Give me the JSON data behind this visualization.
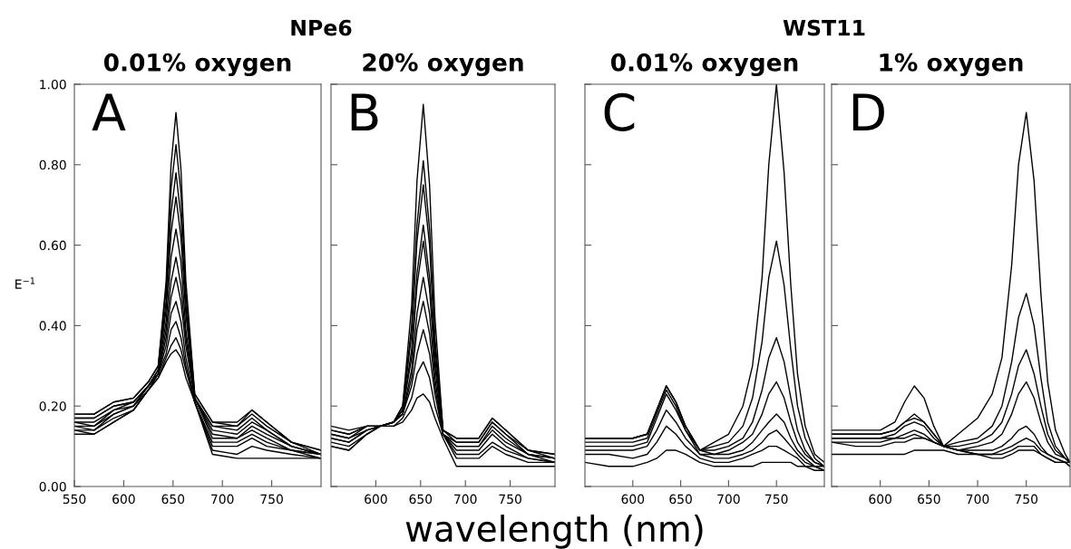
{
  "chart_data": [
    {
      "type": "line",
      "title": "NPe6",
      "subtitle": "0.01% oxygen",
      "ylabel": "E$^{−1}$",
      "annotations": [
        "A"
      ],
      "xlim": [
        550,
        800
      ],
      "ylim": [
        0,
        1
      ],
      "xticks": [
        550,
        600,
        650,
        700,
        750
      ],
      "yticks": [
        {
          "value": 0,
          "label": "0.00"
        },
        {
          "value": 0.2,
          "label": "0.20"
        },
        {
          "value": 0.4,
          "label": "0.40"
        },
        {
          "value": 0.6,
          "label": "0.60"
        },
        {
          "value": 0.8,
          "label": "0.80"
        },
        {
          "value": 1,
          "label": "1.00"
        }
      ],
      "grid": false,
      "x": [
        550,
        570,
        590,
        610,
        625,
        635,
        643,
        648,
        653,
        658,
        663,
        672,
        690,
        715,
        730,
        745,
        770,
        800
      ],
      "series": [
        {
          "color": "#000000",
          "values": [
            0.18,
            0.18,
            0.21,
            0.22,
            0.26,
            0.3,
            0.51,
            0.8,
            0.93,
            0.79,
            0.51,
            0.23,
            0.16,
            0.16,
            0.19,
            0.16,
            0.11,
            0.09
          ]
        },
        {
          "color": "#000000",
          "values": [
            0.18,
            0.18,
            0.21,
            0.22,
            0.26,
            0.3,
            0.49,
            0.74,
            0.85,
            0.73,
            0.48,
            0.23,
            0.16,
            0.15,
            0.19,
            0.16,
            0.11,
            0.09
          ]
        },
        {
          "color": "#000000",
          "values": [
            0.17,
            0.17,
            0.2,
            0.21,
            0.25,
            0.29,
            0.46,
            0.68,
            0.78,
            0.67,
            0.45,
            0.22,
            0.15,
            0.15,
            0.18,
            0.15,
            0.11,
            0.08
          ]
        },
        {
          "color": "#000000",
          "values": [
            0.17,
            0.17,
            0.2,
            0.21,
            0.25,
            0.29,
            0.44,
            0.63,
            0.72,
            0.62,
            0.43,
            0.22,
            0.15,
            0.14,
            0.17,
            0.14,
            0.1,
            0.08
          ]
        },
        {
          "color": "#000000",
          "values": [
            0.16,
            0.16,
            0.19,
            0.21,
            0.25,
            0.29,
            0.41,
            0.57,
            0.64,
            0.56,
            0.39,
            0.22,
            0.14,
            0.13,
            0.16,
            0.14,
            0.1,
            0.08
          ]
        },
        {
          "color": "#000000",
          "values": [
            0.16,
            0.15,
            0.19,
            0.2,
            0.25,
            0.28,
            0.39,
            0.51,
            0.57,
            0.5,
            0.37,
            0.22,
            0.13,
            0.12,
            0.15,
            0.13,
            0.1,
            0.08
          ]
        },
        {
          "color": "#000000",
          "values": [
            0.15,
            0.15,
            0.18,
            0.2,
            0.25,
            0.28,
            0.37,
            0.47,
            0.52,
            0.46,
            0.35,
            0.22,
            0.12,
            0.12,
            0.14,
            0.12,
            0.09,
            0.08
          ]
        },
        {
          "color": "#000000",
          "values": [
            0.15,
            0.14,
            0.18,
            0.2,
            0.24,
            0.28,
            0.35,
            0.43,
            0.46,
            0.41,
            0.32,
            0.21,
            0.11,
            0.11,
            0.13,
            0.11,
            0.09,
            0.08
          ]
        },
        {
          "color": "#000000",
          "values": [
            0.14,
            0.14,
            0.17,
            0.19,
            0.24,
            0.28,
            0.33,
            0.39,
            0.41,
            0.37,
            0.3,
            0.21,
            0.1,
            0.1,
            0.12,
            0.1,
            0.09,
            0.07
          ]
        },
        {
          "color": "#000000",
          "values": [
            0.14,
            0.13,
            0.16,
            0.19,
            0.24,
            0.27,
            0.32,
            0.35,
            0.37,
            0.34,
            0.29,
            0.21,
            0.09,
            0.08,
            0.1,
            0.09,
            0.08,
            0.07
          ]
        },
        {
          "color": "#000000",
          "values": [
            0.13,
            0.13,
            0.16,
            0.19,
            0.24,
            0.27,
            0.31,
            0.33,
            0.34,
            0.32,
            0.27,
            0.21,
            0.08,
            0.07,
            0.07,
            0.07,
            0.07,
            0.07
          ]
        }
      ]
    },
    {
      "type": "line",
      "subtitle": "20% oxygen",
      "xlabel": "wavelength (nm)",
      "annotations": [
        "B"
      ],
      "xlim": [
        550,
        800
      ],
      "ylim": [
        0,
        1
      ],
      "xticks": [
        600,
        650,
        700,
        750
      ],
      "yticks": [
        0,
        0.2,
        0.4,
        0.6,
        0.8,
        1
      ],
      "tick_labels": "x",
      "grid": false,
      "x": [
        550,
        570,
        590,
        605,
        620,
        630,
        640,
        646,
        653,
        660,
        666,
        675,
        690,
        715,
        730,
        745,
        770,
        800
      ],
      "series": [
        {
          "color": "#000000",
          "values": [
            0.15,
            0.14,
            0.15,
            0.15,
            0.16,
            0.2,
            0.45,
            0.76,
            0.95,
            0.75,
            0.42,
            0.14,
            0.12,
            0.12,
            0.17,
            0.14,
            0.09,
            0.08
          ]
        },
        {
          "color": "#000000",
          "values": [
            0.14,
            0.13,
            0.15,
            0.15,
            0.16,
            0.2,
            0.4,
            0.65,
            0.81,
            0.64,
            0.37,
            0.14,
            0.12,
            0.12,
            0.17,
            0.14,
            0.09,
            0.08
          ]
        },
        {
          "color": "#000000",
          "values": [
            0.14,
            0.13,
            0.15,
            0.15,
            0.16,
            0.19,
            0.38,
            0.61,
            0.75,
            0.6,
            0.35,
            0.14,
            0.11,
            0.11,
            0.16,
            0.13,
            0.09,
            0.07
          ]
        },
        {
          "color": "#000000",
          "values": [
            0.13,
            0.12,
            0.15,
            0.15,
            0.16,
            0.19,
            0.34,
            0.53,
            0.65,
            0.52,
            0.32,
            0.13,
            0.11,
            0.11,
            0.16,
            0.13,
            0.08,
            0.07
          ]
        },
        {
          "color": "#000000",
          "values": [
            0.13,
            0.12,
            0.14,
            0.15,
            0.16,
            0.19,
            0.32,
            0.5,
            0.61,
            0.49,
            0.3,
            0.13,
            0.1,
            0.1,
            0.15,
            0.12,
            0.08,
            0.07
          ]
        },
        {
          "color": "#000000",
          "values": [
            0.12,
            0.11,
            0.14,
            0.15,
            0.16,
            0.18,
            0.29,
            0.43,
            0.52,
            0.43,
            0.27,
            0.13,
            0.1,
            0.1,
            0.14,
            0.11,
            0.08,
            0.06
          ]
        },
        {
          "color": "#000000",
          "values": [
            0.12,
            0.11,
            0.14,
            0.15,
            0.16,
            0.18,
            0.27,
            0.39,
            0.46,
            0.38,
            0.25,
            0.13,
            0.09,
            0.09,
            0.13,
            0.1,
            0.07,
            0.06
          ]
        },
        {
          "color": "#000000",
          "values": [
            0.11,
            0.1,
            0.13,
            0.15,
            0.16,
            0.18,
            0.25,
            0.33,
            0.39,
            0.33,
            0.23,
            0.13,
            0.08,
            0.08,
            0.11,
            0.09,
            0.07,
            0.06
          ]
        },
        {
          "color": "#000000",
          "values": [
            0.1,
            0.09,
            0.13,
            0.15,
            0.15,
            0.17,
            0.22,
            0.28,
            0.31,
            0.27,
            0.2,
            0.13,
            0.07,
            0.07,
            0.1,
            0.08,
            0.06,
            0.06
          ]
        },
        {
          "color": "#000000",
          "values": [
            0.1,
            0.09,
            0.13,
            0.15,
            0.15,
            0.16,
            0.19,
            0.22,
            0.23,
            0.21,
            0.17,
            0.12,
            0.05,
            0.05,
            0.05,
            0.05,
            0.05,
            0.05
          ]
        }
      ]
    },
    {
      "type": "line",
      "title": "WST11",
      "subtitle": "0.01% oxygen",
      "annotations": [
        "C"
      ],
      "xlim": [
        550,
        800
      ],
      "ylim": [
        0,
        1
      ],
      "xticks": [
        600,
        650,
        700,
        750
      ],
      "yticks": [
        0,
        0.2,
        0.4,
        0.6,
        0.8,
        1
      ],
      "tick_labels": "x",
      "grid": false,
      "x": [
        550,
        575,
        600,
        615,
        625,
        635,
        645,
        655,
        670,
        685,
        700,
        715,
        725,
        735,
        742,
        750,
        758,
        765,
        772,
        780,
        790,
        800
      ],
      "series": [
        {
          "color": "#000000",
          "values": [
            0.12,
            0.12,
            0.12,
            0.13,
            0.19,
            0.25,
            0.21,
            0.15,
            0.09,
            0.11,
            0.13,
            0.2,
            0.3,
            0.52,
            0.8,
            1.0,
            0.78,
            0.5,
            0.28,
            0.15,
            0.08,
            0.06
          ]
        },
        {
          "color": "#000000",
          "values": [
            0.12,
            0.12,
            0.12,
            0.13,
            0.19,
            0.25,
            0.21,
            0.15,
            0.09,
            0.1,
            0.11,
            0.15,
            0.22,
            0.36,
            0.52,
            0.61,
            0.5,
            0.34,
            0.2,
            0.12,
            0.07,
            0.05
          ]
        },
        {
          "color": "#000000",
          "values": [
            0.12,
            0.12,
            0.12,
            0.13,
            0.19,
            0.25,
            0.21,
            0.15,
            0.09,
            0.09,
            0.1,
            0.12,
            0.16,
            0.24,
            0.32,
            0.37,
            0.31,
            0.22,
            0.14,
            0.09,
            0.06,
            0.05
          ]
        },
        {
          "color": "#000000",
          "values": [
            0.11,
            0.11,
            0.11,
            0.12,
            0.18,
            0.24,
            0.2,
            0.14,
            0.09,
            0.08,
            0.09,
            0.11,
            0.13,
            0.18,
            0.23,
            0.26,
            0.22,
            0.16,
            0.11,
            0.08,
            0.06,
            0.05
          ]
        },
        {
          "color": "#000000",
          "values": [
            0.1,
            0.1,
            0.1,
            0.11,
            0.17,
            0.23,
            0.19,
            0.14,
            0.08,
            0.08,
            0.08,
            0.09,
            0.11,
            0.14,
            0.16,
            0.18,
            0.16,
            0.12,
            0.09,
            0.07,
            0.05,
            0.05
          ]
        },
        {
          "color": "#000000",
          "values": [
            0.09,
            0.09,
            0.09,
            0.1,
            0.14,
            0.19,
            0.16,
            0.12,
            0.08,
            0.07,
            0.07,
            0.08,
            0.09,
            0.11,
            0.13,
            0.14,
            0.12,
            0.1,
            0.08,
            0.06,
            0.05,
            0.04
          ]
        },
        {
          "color": "#000000",
          "values": [
            0.08,
            0.08,
            0.07,
            0.08,
            0.11,
            0.15,
            0.13,
            0.1,
            0.07,
            0.06,
            0.06,
            0.07,
            0.08,
            0.09,
            0.1,
            0.1,
            0.09,
            0.08,
            0.07,
            0.05,
            0.05,
            0.04
          ]
        },
        {
          "color": "#000000",
          "values": [
            0.06,
            0.05,
            0.05,
            0.06,
            0.07,
            0.09,
            0.09,
            0.08,
            0.06,
            0.05,
            0.05,
            0.05,
            0.05,
            0.06,
            0.06,
            0.06,
            0.06,
            0.06,
            0.05,
            0.05,
            0.04,
            0.04
          ]
        }
      ]
    },
    {
      "type": "line",
      "subtitle": "1% oxygen",
      "annotations": [
        "D"
      ],
      "xlim": [
        550,
        795
      ],
      "ylim": [
        0,
        1
      ],
      "xticks": [
        600,
        650,
        700,
        750
      ],
      "yticks": [
        0,
        0.2,
        0.4,
        0.6,
        0.8,
        1
      ],
      "tick_labels": "x",
      "grid": false,
      "x": [
        550,
        575,
        600,
        615,
        625,
        635,
        645,
        655,
        665,
        680,
        700,
        715,
        725,
        735,
        742,
        750,
        758,
        765,
        772,
        780,
        790,
        795
      ],
      "series": [
        {
          "color": "#000000",
          "values": [
            0.14,
            0.14,
            0.14,
            0.16,
            0.21,
            0.25,
            0.22,
            0.15,
            0.1,
            0.13,
            0.17,
            0.23,
            0.32,
            0.55,
            0.8,
            0.93,
            0.76,
            0.48,
            0.26,
            0.14,
            0.08,
            0.06
          ]
        },
        {
          "color": "#000000",
          "values": [
            0.13,
            0.13,
            0.13,
            0.14,
            0.16,
            0.18,
            0.16,
            0.13,
            0.1,
            0.11,
            0.12,
            0.15,
            0.2,
            0.31,
            0.42,
            0.48,
            0.4,
            0.27,
            0.16,
            0.1,
            0.07,
            0.06
          ]
        },
        {
          "color": "#000000",
          "values": [
            0.13,
            0.13,
            0.13,
            0.14,
            0.16,
            0.17,
            0.16,
            0.13,
            0.1,
            0.1,
            0.11,
            0.13,
            0.16,
            0.23,
            0.3,
            0.34,
            0.28,
            0.2,
            0.13,
            0.09,
            0.07,
            0.06
          ]
        },
        {
          "color": "#000000",
          "values": [
            0.12,
            0.12,
            0.12,
            0.13,
            0.15,
            0.16,
            0.15,
            0.12,
            0.1,
            0.09,
            0.1,
            0.11,
            0.13,
            0.18,
            0.23,
            0.26,
            0.22,
            0.16,
            0.11,
            0.08,
            0.07,
            0.06
          ]
        },
        {
          "color": "#000000",
          "values": [
            0.12,
            0.12,
            0.12,
            0.12,
            0.13,
            0.14,
            0.13,
            0.11,
            0.1,
            0.09,
            0.09,
            0.09,
            0.1,
            0.12,
            0.14,
            0.15,
            0.13,
            0.1,
            0.08,
            0.07,
            0.06,
            0.06
          ]
        },
        {
          "color": "#000000",
          "values": [
            0.11,
            0.11,
            0.11,
            0.12,
            0.12,
            0.13,
            0.12,
            0.11,
            0.1,
            0.09,
            0.08,
            0.08,
            0.09,
            0.1,
            0.11,
            0.12,
            0.11,
            0.09,
            0.08,
            0.07,
            0.06,
            0.06
          ]
        },
        {
          "color": "#000000",
          "values": [
            0.11,
            0.1,
            0.1,
            0.11,
            0.11,
            0.12,
            0.12,
            0.11,
            0.1,
            0.09,
            0.08,
            0.08,
            0.08,
            0.09,
            0.1,
            0.1,
            0.1,
            0.08,
            0.07,
            0.06,
            0.06,
            0.05
          ]
        },
        {
          "color": "#000000",
          "values": [
            0.08,
            0.08,
            0.08,
            0.08,
            0.08,
            0.09,
            0.09,
            0.09,
            0.09,
            0.08,
            0.08,
            0.07,
            0.07,
            0.08,
            0.09,
            0.09,
            0.09,
            0.08,
            0.07,
            0.06,
            0.06,
            0.05
          ]
        }
      ]
    }
  ]
}
